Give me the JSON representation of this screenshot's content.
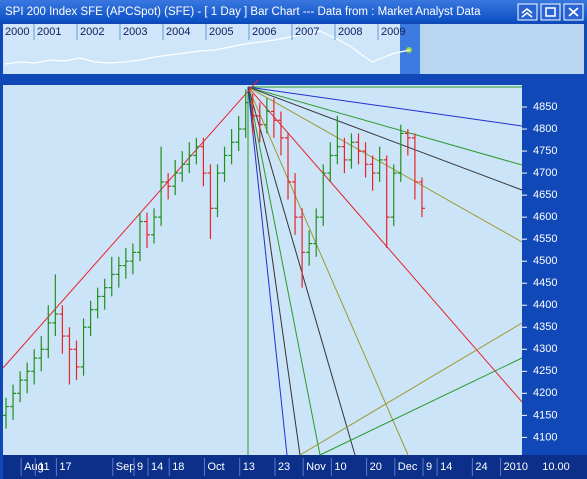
{
  "window": {
    "title": "SPI 200 Index SFE (APCSpot) (SFE) -  [ 1 Day ] Bar Chart --- Data from : Market Analyst Data"
  },
  "overview": {
    "years": [
      "2000",
      "2001",
      "2002",
      "2003",
      "2004",
      "2005",
      "2006",
      "2007",
      "2008",
      "2009"
    ]
  },
  "chart_data": {
    "type": "ohlc",
    "categories": [
      null,
      null,
      null,
      "Aug",
      null,
      "11",
      null,
      null,
      "17",
      null,
      null,
      null,
      null,
      null,
      null,
      null,
      "Sep",
      null,
      null,
      "9",
      null,
      "14",
      null,
      null,
      "18",
      null,
      null,
      null,
      null,
      "Oct",
      null,
      null,
      null,
      null,
      "13",
      null,
      null,
      null,
      null,
      "23",
      null,
      null,
      null,
      "Nov",
      null,
      null,
      null,
      "10",
      null,
      null,
      null,
      null,
      "20",
      null,
      null,
      null,
      "Dec",
      null,
      null,
      null,
      "9",
      null,
      "14",
      null,
      null,
      null,
      null,
      "24",
      null,
      null,
      null,
      "2010",
      null,
      null
    ],
    "open": [
      4150,
      4170,
      4200,
      4230,
      4250,
      4280,
      4300,
      4360,
      4380,
      4330,
      4300,
      4260,
      4350,
      4390,
      4420,
      4440,
      4470,
      4490,
      4500,
      4520,
      4590,
      4560,
      4600,
      4680,
      4670,
      4700,
      4720,
      4740,
      4760,
      4700,
      4620,
      4700,
      4740,
      4770,
      4800,
      4860,
      4830,
      4810,
      4840,
      4820,
      4780,
      4680,
      4600,
      4520,
      4540,
      4600,
      4700,
      4740,
      4760,
      4730,
      4770,
      4750,
      4720,
      4700,
      4730,
      4600,
      4700,
      4790,
      4780,
      4680,
      null,
      null,
      null,
      null,
      null,
      null,
      null,
      null,
      null,
      null,
      null,
      null,
      null,
      null
    ],
    "high": [
      4190,
      4220,
      4250,
      4270,
      4300,
      4330,
      4400,
      4470,
      4400,
      4350,
      4320,
      4370,
      4410,
      4440,
      4460,
      4510,
      4510,
      4530,
      4540,
      4610,
      4610,
      4620,
      4760,
      4700,
      4730,
      4750,
      4770,
      4780,
      4780,
      4720,
      4720,
      4760,
      4800,
      4830,
      4890,
      4880,
      4860,
      4870,
      4870,
      4840,
      4790,
      4700,
      4620,
      4570,
      4620,
      4720,
      4770,
      4830,
      4780,
      4790,
      4790,
      4770,
      4740,
      4760,
      4740,
      4720,
      4810,
      4800,
      4790,
      4690,
      null,
      null,
      null,
      null,
      null,
      null,
      null,
      null,
      null,
      null,
      null,
      null,
      null,
      null
    ],
    "low": [
      4120,
      4140,
      4180,
      4200,
      4220,
      4250,
      4280,
      4330,
      4290,
      4220,
      4230,
      4240,
      4330,
      4370,
      4390,
      4420,
      4440,
      4460,
      4470,
      4500,
      4530,
      4540,
      4580,
      4640,
      4650,
      4680,
      4700,
      4720,
      4670,
      4550,
      4600,
      4680,
      4720,
      4750,
      4780,
      4790,
      4770,
      4790,
      4780,
      4740,
      4640,
      4560,
      4440,
      4490,
      4510,
      4580,
      4680,
      4720,
      4700,
      4710,
      4720,
      4690,
      4660,
      4680,
      4530,
      4580,
      4680,
      4740,
      4640,
      4600,
      null,
      null,
      null,
      null,
      null,
      null,
      null,
      null,
      null,
      null,
      null,
      null,
      null,
      null
    ],
    "close": [
      4170,
      4200,
      4230,
      4250,
      4280,
      4300,
      4360,
      4380,
      4330,
      4300,
      4260,
      4350,
      4390,
      4420,
      4440,
      4470,
      4490,
      4500,
      4520,
      4590,
      4560,
      4600,
      4680,
      4670,
      4700,
      4720,
      4740,
      4760,
      4700,
      4620,
      4700,
      4740,
      4770,
      4800,
      4860,
      4830,
      4810,
      4840,
      4820,
      4780,
      4680,
      4600,
      4520,
      4540,
      4600,
      4700,
      4740,
      4760,
      4730,
      4770,
      4750,
      4720,
      4700,
      4730,
      4600,
      4700,
      4790,
      4780,
      4680,
      4620,
      null,
      null,
      null,
      null,
      null,
      null,
      null,
      null,
      null,
      null,
      null,
      null,
      null,
      null
    ],
    "colors": {
      "up": "#1f8f1f",
      "down": "#e8242a"
    },
    "ylim": [
      4060,
      4900
    ],
    "yticks": [
      4100,
      4150,
      4200,
      4250,
      4300,
      4350,
      4400,
      4450,
      4500,
      4550,
      4600,
      4650,
      4700,
      4750,
      4800,
      4850
    ],
    "corner_label": "10.00"
  }
}
